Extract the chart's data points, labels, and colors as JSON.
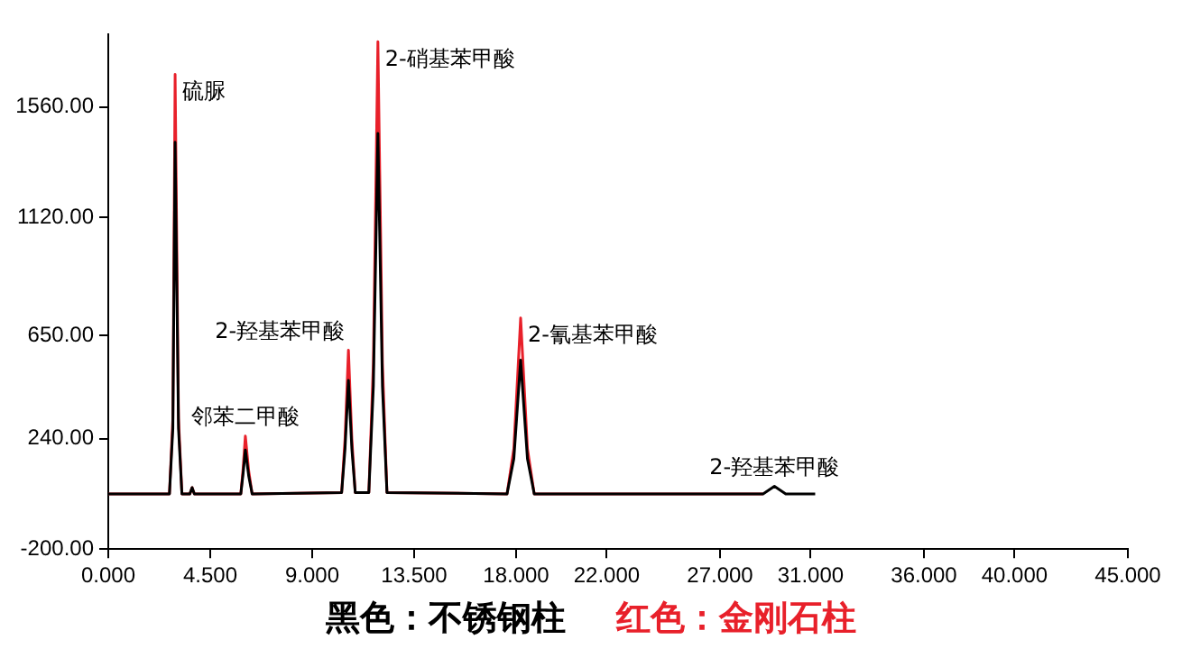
{
  "chart_data": {
    "type": "line",
    "x": [
      0,
      2.7,
      2.85,
      2.95,
      3.1,
      3.25,
      3.6,
      3.7,
      3.8,
      5.85,
      5.95,
      6.05,
      6.2,
      6.35,
      10.3,
      10.45,
      10.6,
      10.75,
      10.9,
      11.5,
      11.7,
      11.9,
      12.1,
      12.3,
      17.6,
      17.9,
      18.2,
      18.5,
      18.8,
      28.9,
      29.4,
      29.9,
      31.2
    ],
    "series": [
      {
        "color": "#000000",
        "values": [
          20,
          20,
          280,
          1420,
          280,
          20,
          20,
          45,
          20,
          20,
          100,
          195,
          90,
          20,
          25,
          200,
          472,
          200,
          25,
          25,
          450,
          1455,
          450,
          25,
          20,
          160,
          553,
          160,
          20,
          20,
          50,
          20,
          20
        ]
      },
      {
        "color": "#e8202a",
        "values": [
          20,
          20,
          320,
          1690,
          320,
          20,
          20,
          45,
          20,
          20,
          120,
          250,
          110,
          20,
          25,
          240,
          592,
          240,
          25,
          25,
          540,
          1820,
          540,
          25,
          20,
          200,
          720,
          200,
          20,
          20,
          null,
          null,
          null
        ]
      }
    ],
    "xlim": [
      0,
      45
    ],
    "xticks": [
      {
        "value": 0,
        "label": "0.000"
      },
      {
        "value": 4.5,
        "label": "4.500"
      },
      {
        "value": 9,
        "label": "9.000"
      },
      {
        "value": 13.5,
        "label": "13.500"
      },
      {
        "value": 18,
        "label": "18.000"
      },
      {
        "value": 22,
        "label": "22.000"
      },
      {
        "value": 27,
        "label": "27.000"
      },
      {
        "value": 31,
        "label": "31.000"
      },
      {
        "value": 36,
        "label": "36.000"
      },
      {
        "value": 40,
        "label": "40.000"
      },
      {
        "value": 45,
        "label": "45.000"
      }
    ],
    "ylim": [
      -200,
      1850
    ],
    "yticks": [
      {
        "value": -200,
        "label": "-200.00"
      },
      {
        "value": 240,
        "label": "240.00"
      },
      {
        "value": 650,
        "label": "650.00"
      },
      {
        "value": 1120,
        "label": "1120.00"
      },
      {
        "value": 1560,
        "label": "1560.00"
      }
    ],
    "grid": false,
    "marker": "none",
    "line_style": "solid",
    "annotations": [
      {
        "text": "硫脲",
        "x": 2.95,
        "y": 1690
      },
      {
        "text": "邻苯二甲酸",
        "x": 6.05,
        "y": 250
      },
      {
        "text": "2-羟基苯甲酸",
        "x": 10.6,
        "y": 592
      },
      {
        "text": "2-硝基苯甲酸",
        "x": 11.9,
        "y": 1820
      },
      {
        "text": "2-氰基苯甲酸",
        "x": 18.2,
        "y": 720
      },
      {
        "text": "2-羟基苯甲酸",
        "x": 29.4,
        "y": 50
      },
      "黑色：不锈钢柱",
      "红色：金刚石柱"
    ]
  }
}
